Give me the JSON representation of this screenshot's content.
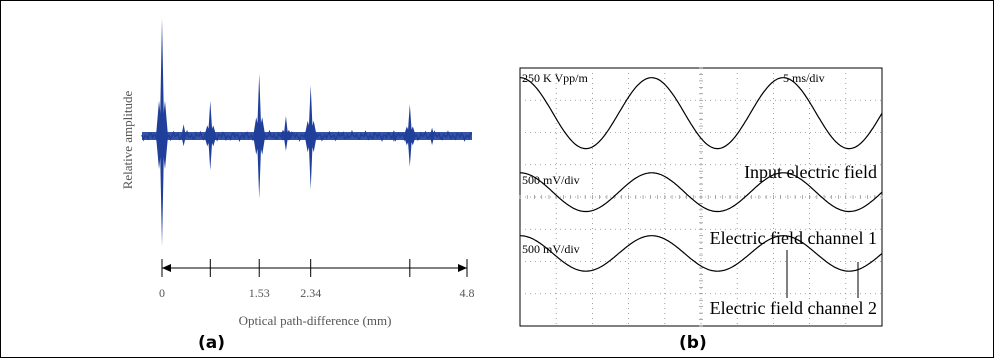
{
  "panels": {
    "a": {
      "caption": "(a)"
    },
    "b": {
      "caption": "(b)"
    }
  },
  "colors": {
    "signal": "#1f3f9a",
    "ink": "#000000",
    "grid": "#8a8a8a"
  },
  "chart_data": [
    {
      "type": "line",
      "panel": "a",
      "title": "",
      "xlabel": "Optical path-difference (mm)",
      "ylabel": "Relative amplitude",
      "xlim": [
        0,
        4.8
      ],
      "x_ticks": [
        {
          "value": 0,
          "label": "0"
        },
        {
          "value": 0.76,
          "label": ""
        },
        {
          "value": 1.53,
          "label": "1.53"
        },
        {
          "value": 2.34,
          "label": "2.34"
        },
        {
          "value": 3.9,
          "label": ""
        },
        {
          "value": 4.8,
          "label": "4.8"
        }
      ],
      "grid": false,
      "series": [
        {
          "peaks": [
            {
              "x": 0.0,
              "up": 1.0,
              "down": 0.97
            },
            {
              "x": 0.34,
              "up": 0.1,
              "down": 0.09
            },
            {
              "x": 0.76,
              "up": 0.3,
              "down": 0.3
            },
            {
              "x": 1.53,
              "up": 0.53,
              "down": 0.55
            },
            {
              "x": 1.95,
              "up": 0.17,
              "down": 0.13
            },
            {
              "x": 2.34,
              "up": 0.43,
              "down": 0.47
            },
            {
              "x": 3.65,
              "up": 0.05,
              "down": 0.05
            },
            {
              "x": 3.9,
              "up": 0.27,
              "down": 0.27
            },
            {
              "x": 4.25,
              "up": 0.07,
              "down": 0.08
            }
          ]
        }
      ]
    },
    {
      "type": "line",
      "panel": "b",
      "title": "",
      "grid": true,
      "grid_divisions": {
        "x": 10,
        "y": 8
      },
      "scale_labels": {
        "top_left": "250 K Vpp/m",
        "top_right": "5 ms/div"
      },
      "series": [
        {
          "name": "Input electric field",
          "scale_label": "",
          "cycles_per_screen": 2.75,
          "phase_deg": 180,
          "amplitude_div": 1.1,
          "center_div": 1.4
        },
        {
          "name": "Electric field channel 1",
          "scale_label": "500 mV/div",
          "cycles_per_screen": 2.75,
          "phase_deg": 180,
          "amplitude_div": 0.6,
          "center_div": 3.85
        },
        {
          "name": "Electric field channel 2",
          "scale_label": "500 mV/div",
          "cycles_per_screen": 2.75,
          "phase_deg": 180,
          "amplitude_div": 0.55,
          "center_div": 5.75
        }
      ]
    }
  ]
}
